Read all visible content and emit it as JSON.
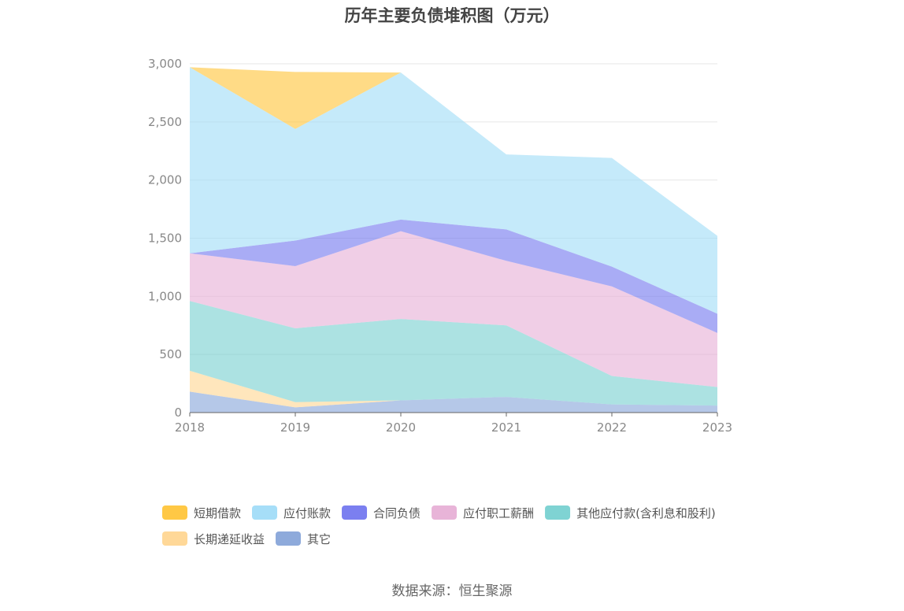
{
  "chart_data": {
    "type": "area",
    "stacked": true,
    "title": "历年主要负债堆积图（万元）",
    "categories": [
      "2018",
      "2019",
      "2020",
      "2021",
      "2022",
      "2023"
    ],
    "ylim": [
      0,
      3000
    ],
    "yticks": [
      0,
      500,
      1000,
      1500,
      2000,
      2500,
      3000
    ],
    "ytick_labels": [
      "0",
      "500",
      "1,000",
      "1,500",
      "2,000",
      "2,500",
      "3,000"
    ],
    "grid": true,
    "legend_position": "bottom",
    "series": [
      {
        "name": "其它",
        "color": "#8eaadb",
        "values": [
          180,
          45,
          105,
          135,
          70,
          60
        ]
      },
      {
        "name": "长期递延收益",
        "color": "#ffd898",
        "values": [
          180,
          45,
          0,
          0,
          0,
          0
        ]
      },
      {
        "name": "其他应付款(含利息和股利)",
        "color": "#7fd3d3",
        "values": [
          600,
          635,
          700,
          615,
          245,
          160
        ]
      },
      {
        "name": "应付职工薪酬",
        "color": "#e8b4d8",
        "values": [
          410,
          535,
          755,
          555,
          770,
          465
        ]
      },
      {
        "name": "合同负债",
        "color": "#7b7ff0",
        "values": [
          0,
          220,
          100,
          270,
          170,
          165
        ]
      },
      {
        "name": "应付账款",
        "color": "#a6def8",
        "values": [
          1600,
          960,
          1265,
          645,
          935,
          670
        ]
      },
      {
        "name": "短期借款",
        "color": "#ffc845",
        "values": [
          0,
          490,
          0,
          0,
          0,
          0
        ]
      }
    ],
    "legend_order": [
      "短期借款",
      "应付账款",
      "合同负债",
      "应付职工薪酬",
      "其他应付款(含利息和股利)",
      "长期递延收益",
      "其它"
    ]
  },
  "source_note": "数据来源：恒生聚源"
}
